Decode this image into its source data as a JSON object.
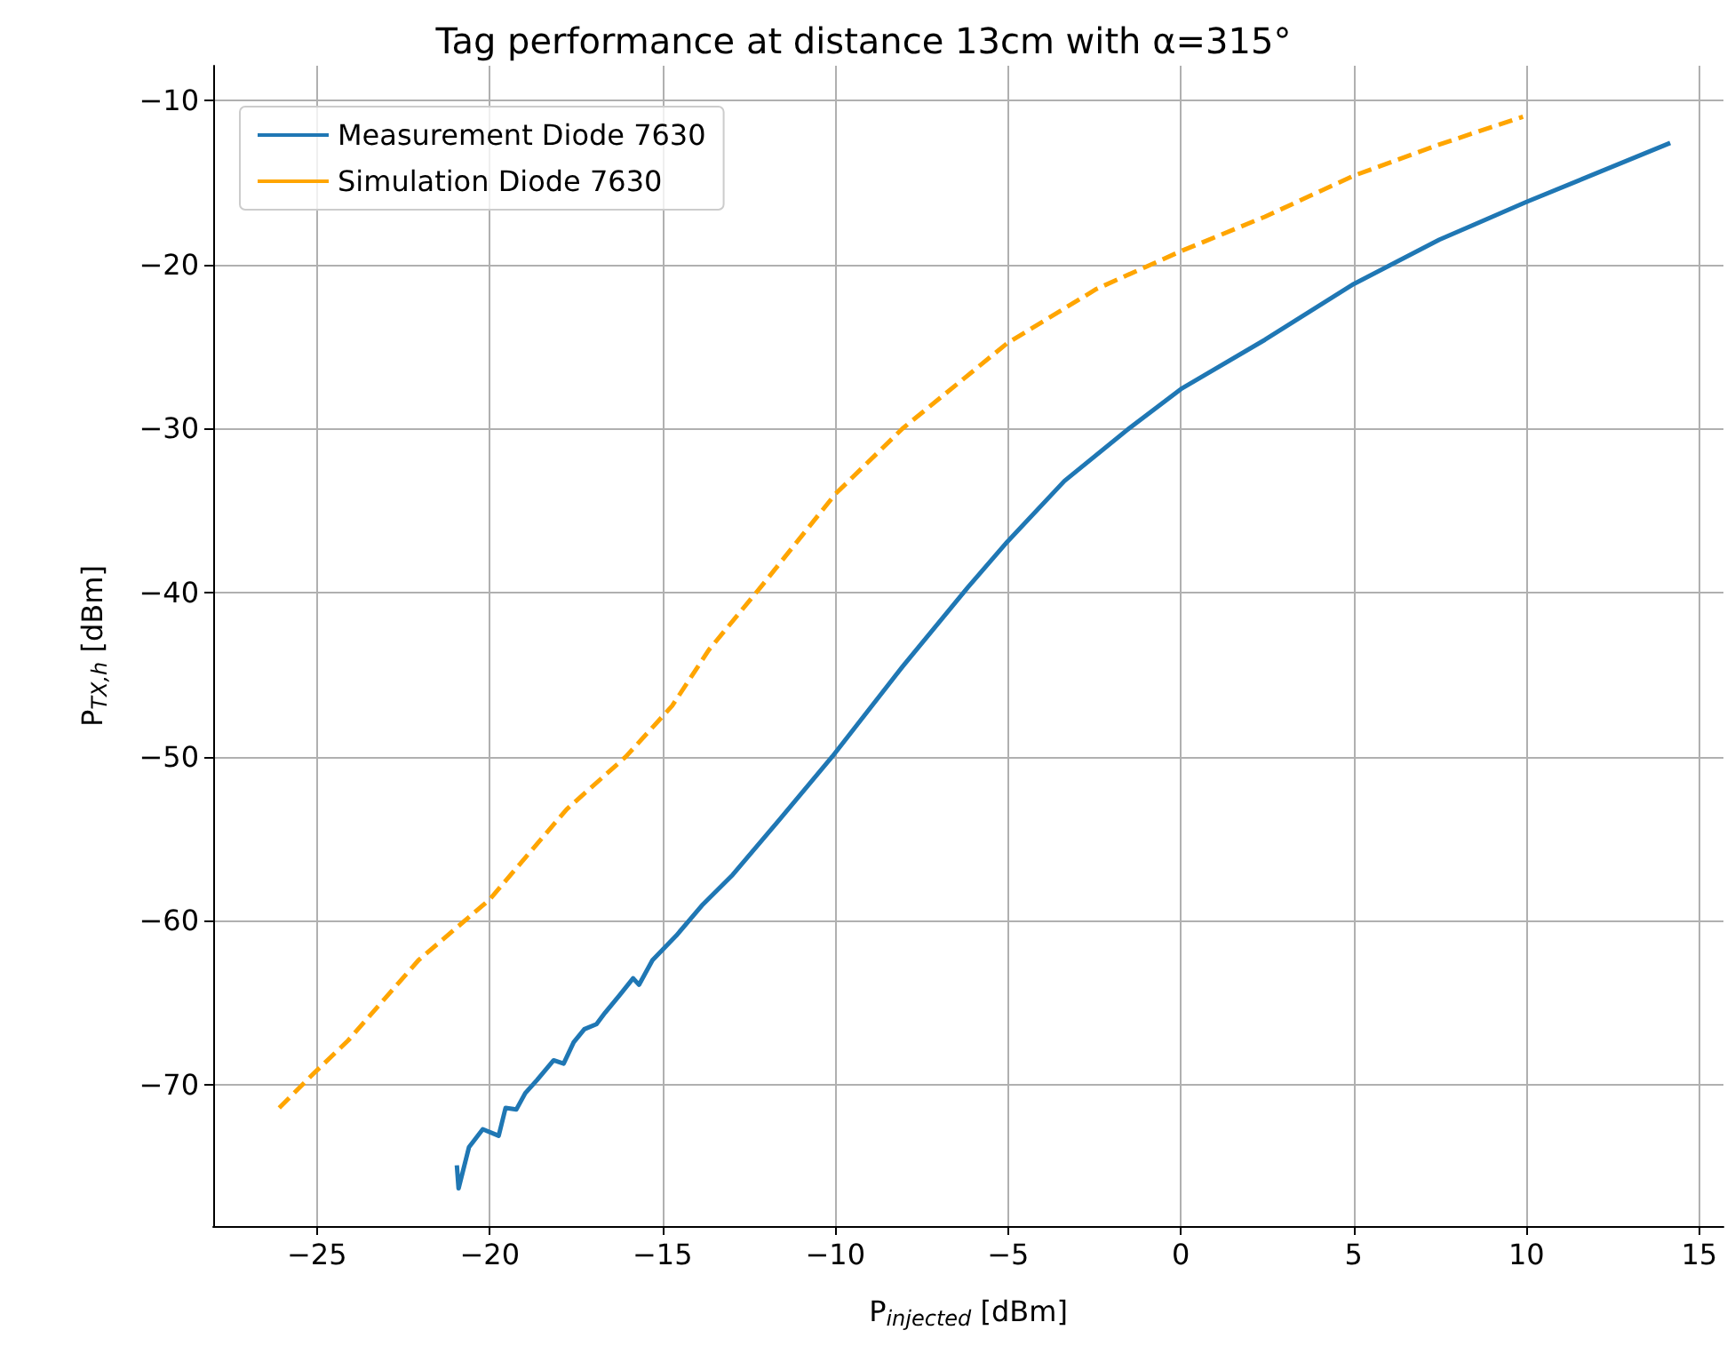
{
  "chart_data": {
    "type": "line",
    "title": "Tag performance at distance 13cm with α=315°",
    "xlabel": "P$_{injected}$ [dBm]",
    "ylabel": "P$_{TX,h}$ [dBm]",
    "xlim": [
      -28,
      15.7
    ],
    "ylim": [
      -78.6,
      -7.9
    ],
    "xticks": [
      -25,
      -20,
      -15,
      -10,
      -5,
      0,
      5,
      10,
      15
    ],
    "yticks": [
      -70,
      -60,
      -50,
      -40,
      -30,
      -20,
      -10
    ],
    "grid": true,
    "legend": "top left",
    "marker": "none",
    "series": [
      {
        "name": "Measurement Diode 7630",
        "color": "#1f77b4",
        "line_style": "solid",
        "x": [
          -20.95,
          -20.9,
          -20.6,
          -20.2,
          -19.74,
          -19.54,
          -19.23,
          -18.97,
          -18.63,
          -18.15,
          -17.86,
          -17.57,
          -17.26,
          -16.91,
          -16.66,
          -16.23,
          -15.85,
          -15.68,
          -15.29,
          -14.6,
          -13.83,
          -12.97,
          -11.6,
          -10.09,
          -8.05,
          -6.17,
          -5.02,
          -3.37,
          -1.5,
          0,
          2.43,
          5,
          7.48,
          10,
          14.16
        ],
        "values": [
          -74.9,
          -76.3,
          -73.8,
          -72.7,
          -73.1,
          -71.4,
          -71.5,
          -70.5,
          -69.7,
          -68.5,
          -68.7,
          -67.4,
          -66.6,
          -66.3,
          -65.6,
          -64.5,
          -63.5,
          -63.9,
          -62.4,
          -60.9,
          -59.0,
          -57.2,
          -53.8,
          -50.0,
          -44.5,
          -39.7,
          -36.9,
          -33.2,
          -30.0,
          -27.6,
          -24.6,
          -21.2,
          -18.5,
          -16.2,
          -12.6
        ]
      },
      {
        "name": "Simulation Diode 7630",
        "color": "#ffa500",
        "line_style": "dashed",
        "x": [
          -26.09,
          -25.14,
          -24.1,
          -22.06,
          -20.0,
          -17.77,
          -16.06,
          -14.72,
          -13.66,
          -12.17,
          -10.0,
          -8.05,
          -5.02,
          -2.44,
          0,
          2.43,
          5,
          7.48,
          9.9
        ],
        "values": [
          -71.4,
          -69.4,
          -67.3,
          -62.4,
          -58.7,
          -53.2,
          -50.0,
          -46.9,
          -43.5,
          -39.7,
          -34.0,
          -30.0,
          -24.8,
          -21.5,
          -19.2,
          -17.1,
          -14.6,
          -12.7,
          -11.0
        ]
      }
    ]
  }
}
